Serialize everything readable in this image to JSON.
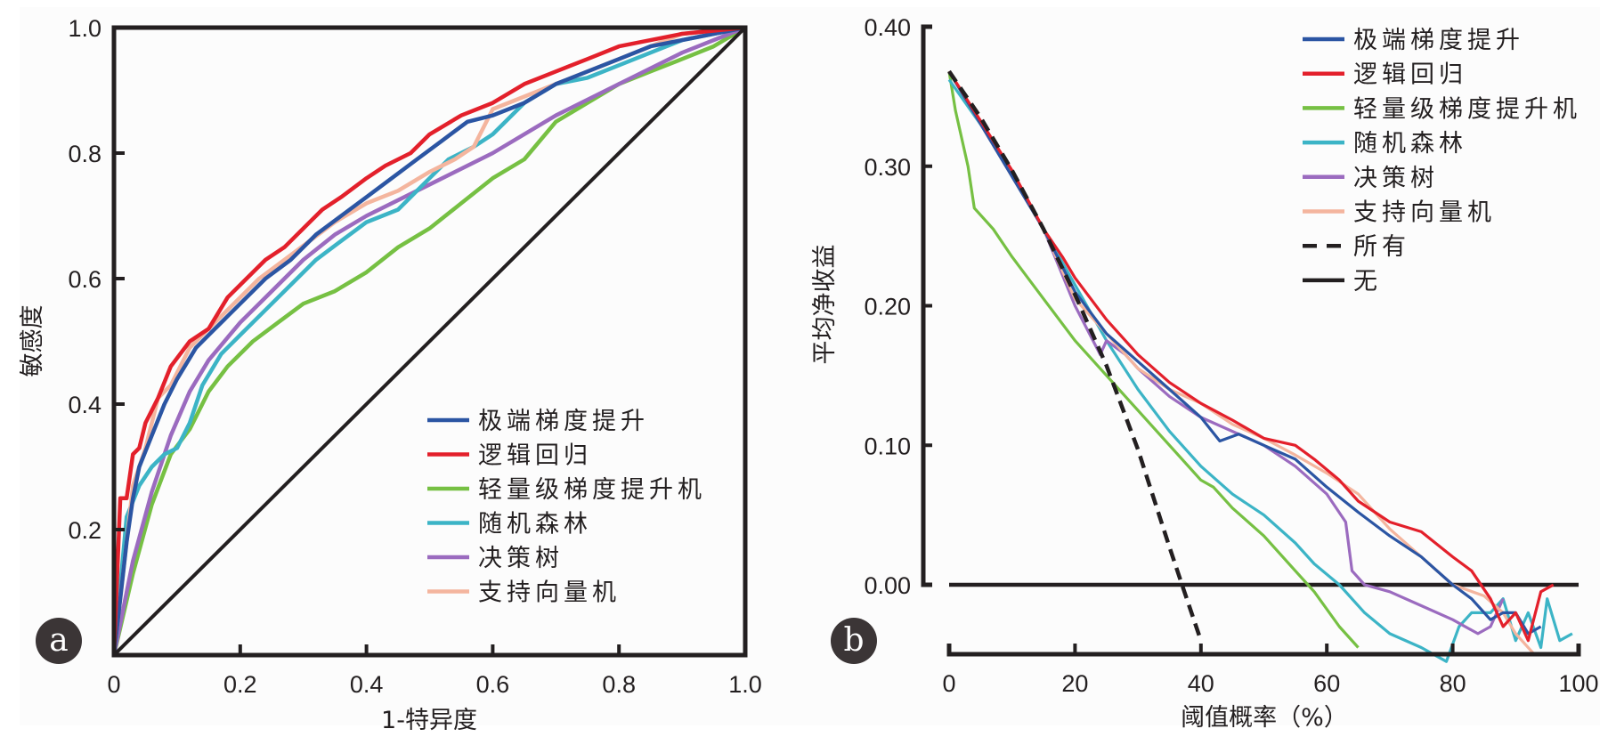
{
  "figure": {
    "panels": [
      "a",
      "b"
    ]
  },
  "chart_data": [
    {
      "panel": "a",
      "type": "line",
      "title": "",
      "xlabel": "1-特异度",
      "ylabel": "敏感度",
      "xlim": [
        0,
        1.0
      ],
      "ylim": [
        0,
        1.0
      ],
      "xticks": [
        0,
        0.2,
        0.4,
        0.6,
        0.8,
        1.0
      ],
      "xtick_labels": [
        "0",
        "0.2",
        "0.4",
        "0.6",
        "0.8",
        "1.0"
      ],
      "yticks": [
        0.2,
        0.4,
        0.6,
        0.8,
        1.0
      ],
      "ytick_labels": [
        "0.2",
        "0.4",
        "0.6",
        "0.8",
        "1.0"
      ],
      "grid": false,
      "legend_position": "bottom-right",
      "reference_line": {
        "name": "diagonal",
        "x": [
          0,
          1
        ],
        "y": [
          0,
          1
        ],
        "color": "#231f20"
      },
      "series": [
        {
          "name": "极端梯度提升",
          "color": "#2b55a3",
          "x": [
            0,
            0.02,
            0.03,
            0.04,
            0.06,
            0.08,
            0.1,
            0.13,
            0.16,
            0.2,
            0.24,
            0.28,
            0.32,
            0.36,
            0.4,
            0.44,
            0.48,
            0.52,
            0.56,
            0.6,
            0.65,
            0.7,
            0.75,
            0.8,
            0.85,
            0.9,
            1.0
          ],
          "y": [
            0,
            0.18,
            0.25,
            0.3,
            0.35,
            0.4,
            0.44,
            0.49,
            0.52,
            0.56,
            0.6,
            0.63,
            0.67,
            0.7,
            0.73,
            0.76,
            0.79,
            0.82,
            0.85,
            0.86,
            0.88,
            0.91,
            0.93,
            0.95,
            0.97,
            0.98,
            1.0
          ]
        },
        {
          "name": "逻辑回归",
          "color": "#e3202b",
          "x": [
            0,
            0.01,
            0.02,
            0.03,
            0.04,
            0.05,
            0.07,
            0.09,
            0.12,
            0.15,
            0.18,
            0.21,
            0.24,
            0.27,
            0.3,
            0.33,
            0.36,
            0.4,
            0.43,
            0.47,
            0.5,
            0.55,
            0.6,
            0.65,
            0.7,
            0.75,
            0.8,
            0.85,
            0.9,
            1.0
          ],
          "y": [
            0,
            0.25,
            0.25,
            0.32,
            0.33,
            0.37,
            0.41,
            0.46,
            0.5,
            0.52,
            0.57,
            0.6,
            0.63,
            0.65,
            0.68,
            0.71,
            0.73,
            0.76,
            0.78,
            0.8,
            0.83,
            0.86,
            0.88,
            0.91,
            0.93,
            0.95,
            0.97,
            0.98,
            0.99,
            1.0
          ]
        },
        {
          "name": "轻量级梯度提升机",
          "color": "#76c043",
          "x": [
            0,
            0.03,
            0.06,
            0.09,
            0.12,
            0.15,
            0.18,
            0.22,
            0.26,
            0.3,
            0.35,
            0.4,
            0.45,
            0.5,
            0.55,
            0.6,
            0.65,
            0.7,
            0.75,
            0.8,
            0.85,
            0.9,
            0.95,
            1.0
          ],
          "y": [
            0,
            0.13,
            0.24,
            0.32,
            0.36,
            0.42,
            0.46,
            0.5,
            0.53,
            0.56,
            0.58,
            0.61,
            0.65,
            0.68,
            0.72,
            0.76,
            0.79,
            0.85,
            0.88,
            0.91,
            0.93,
            0.95,
            0.97,
            1.0
          ]
        },
        {
          "name": "随机森林",
          "color": "#3cb4c6",
          "x": [
            0,
            0.02,
            0.04,
            0.06,
            0.08,
            0.1,
            0.12,
            0.14,
            0.17,
            0.2,
            0.24,
            0.28,
            0.32,
            0.36,
            0.4,
            0.45,
            0.5,
            0.53,
            0.57,
            0.6,
            0.65,
            0.7,
            0.75,
            0.8,
            0.85,
            0.9,
            1.0
          ],
          "y": [
            0,
            0.22,
            0.27,
            0.3,
            0.32,
            0.33,
            0.37,
            0.43,
            0.48,
            0.51,
            0.55,
            0.59,
            0.63,
            0.66,
            0.69,
            0.71,
            0.76,
            0.79,
            0.81,
            0.83,
            0.88,
            0.91,
            0.92,
            0.94,
            0.96,
            0.98,
            1.0
          ]
        },
        {
          "name": "决策树",
          "color": "#9b6bbf",
          "x": [
            0,
            0.03,
            0.06,
            0.09,
            0.12,
            0.15,
            0.2,
            0.25,
            0.3,
            0.35,
            0.4,
            0.5,
            0.6,
            0.7,
            0.8,
            0.9,
            1.0
          ],
          "y": [
            0,
            0.15,
            0.26,
            0.35,
            0.42,
            0.47,
            0.53,
            0.58,
            0.63,
            0.67,
            0.7,
            0.75,
            0.8,
            0.86,
            0.91,
            0.96,
            1.0
          ]
        },
        {
          "name": "支持向量机",
          "color": "#f4b59e",
          "x": [
            0,
            0.02,
            0.03,
            0.05,
            0.07,
            0.09,
            0.12,
            0.15,
            0.19,
            0.23,
            0.27,
            0.31,
            0.35,
            0.4,
            0.45,
            0.5,
            0.54,
            0.57,
            0.6,
            0.65,
            0.7,
            0.75,
            0.8,
            0.85,
            0.9,
            1.0
          ],
          "y": [
            0,
            0.18,
            0.27,
            0.33,
            0.41,
            0.43,
            0.49,
            0.52,
            0.56,
            0.6,
            0.63,
            0.66,
            0.69,
            0.72,
            0.74,
            0.77,
            0.79,
            0.81,
            0.87,
            0.89,
            0.91,
            0.93,
            0.95,
            0.97,
            0.99,
            1.0
          ]
        }
      ]
    },
    {
      "panel": "b",
      "type": "line",
      "title": "",
      "xlabel": "阈值概率（%）",
      "ylabel": "平均净收益",
      "xlim": [
        0,
        100
      ],
      "ylim": [
        -0.05,
        0.4
      ],
      "xticks": [
        0,
        20,
        40,
        60,
        80,
        100
      ],
      "xtick_labels": [
        "0",
        "20",
        "40",
        "60",
        "80",
        "100"
      ],
      "yticks": [
        0.0,
        0.1,
        0.2,
        0.3,
        0.4
      ],
      "ytick_labels": [
        "0.00",
        "0.10",
        "0.20",
        "0.30",
        "0.40"
      ],
      "grid": false,
      "legend_position": "top-right",
      "series": [
        {
          "name": "极端梯度提升",
          "color": "#2b55a3",
          "style": "solid",
          "x": [
            0,
            15,
            20,
            25,
            30,
            35,
            40,
            43,
            46,
            50,
            55,
            60,
            65,
            70,
            75,
            80,
            83,
            86,
            88,
            90,
            92,
            94
          ],
          "y": [
            0.368,
            0.255,
            0.21,
            0.18,
            0.16,
            0.14,
            0.12,
            0.103,
            0.108,
            0.1,
            0.09,
            0.07,
            0.052,
            0.035,
            0.02,
            0.0,
            -0.01,
            -0.025,
            -0.02,
            -0.02,
            -0.035,
            -0.03
          ]
        },
        {
          "name": "逻辑回归",
          "color": "#e3202b",
          "style": "solid",
          "x": [
            0,
            10,
            15,
            18,
            20,
            25,
            30,
            35,
            40,
            45,
            50,
            55,
            58,
            62,
            65,
            70,
            75,
            80,
            83,
            86,
            88,
            90,
            92,
            94,
            96
          ],
          "y": [
            0.368,
            0.297,
            0.255,
            0.235,
            0.22,
            0.19,
            0.165,
            0.145,
            0.13,
            0.118,
            0.105,
            0.1,
            0.09,
            0.075,
            0.06,
            0.045,
            0.038,
            0.02,
            0.01,
            -0.01,
            -0.03,
            -0.02,
            -0.04,
            -0.005,
            0.0
          ]
        },
        {
          "name": "轻量级梯度提升机",
          "color": "#76c043",
          "style": "solid",
          "x": [
            0,
            1,
            3,
            4,
            7,
            10,
            15,
            20,
            25,
            30,
            35,
            40,
            42,
            45,
            50,
            55,
            58,
            62,
            65
          ],
          "y": [
            0.368,
            0.34,
            0.3,
            0.27,
            0.255,
            0.235,
            0.205,
            0.175,
            0.15,
            0.125,
            0.1,
            0.075,
            0.07,
            0.055,
            0.035,
            0.01,
            -0.005,
            -0.03,
            -0.045
          ]
        },
        {
          "name": "随机森林",
          "color": "#3cb4c6",
          "style": "solid",
          "x": [
            0,
            5,
            10,
            15,
            20,
            25,
            30,
            35,
            40,
            45,
            50,
            55,
            58,
            62,
            66,
            70,
            75,
            79,
            81,
            83,
            86,
            88,
            90,
            92,
            94,
            95,
            97,
            99
          ],
          "y": [
            0.362,
            0.33,
            0.295,
            0.255,
            0.215,
            0.175,
            0.14,
            0.11,
            0.085,
            0.065,
            0.05,
            0.03,
            0.015,
            0.0,
            -0.02,
            -0.035,
            -0.045,
            -0.055,
            -0.03,
            -0.02,
            -0.02,
            -0.01,
            -0.04,
            -0.02,
            -0.045,
            -0.01,
            -0.04,
            -0.035
          ]
        },
        {
          "name": "决策树",
          "color": "#9b6bbf",
          "style": "solid",
          "x": [
            0,
            15,
            20,
            24,
            25,
            28,
            30,
            35,
            40,
            45,
            50,
            55,
            60,
            63,
            64,
            66,
            70,
            75,
            80,
            84,
            86,
            88
          ],
          "y": [
            0.368,
            0.255,
            0.2,
            0.165,
            0.175,
            0.165,
            0.155,
            0.135,
            0.12,
            0.11,
            0.1,
            0.085,
            0.065,
            0.045,
            0.01,
            0.0,
            -0.005,
            -0.015,
            -0.025,
            -0.035,
            -0.03,
            -0.01
          ]
        },
        {
          "name": "支持向量机",
          "color": "#f4b59e",
          "style": "solid",
          "x": [
            0,
            15,
            20,
            22,
            25,
            30,
            35,
            40,
            45,
            50,
            55,
            60,
            65,
            70,
            75,
            80,
            85,
            88,
            90,
            93
          ],
          "y": [
            0.368,
            0.255,
            0.205,
            0.195,
            0.18,
            0.155,
            0.14,
            0.13,
            0.115,
            0.105,
            0.093,
            0.08,
            0.065,
            0.04,
            0.02,
            0.0,
            -0.008,
            -0.02,
            -0.035,
            -0.05
          ]
        },
        {
          "name": "所有",
          "color": "#231f20",
          "style": "dashed",
          "x": [
            0,
            5,
            10,
            15,
            20,
            25,
            30,
            35,
            37,
            40
          ],
          "y": [
            0.368,
            0.335,
            0.297,
            0.255,
            0.208,
            0.157,
            0.097,
            0.027,
            0.0,
            -0.04
          ]
        },
        {
          "name": "无",
          "color": "#231f20",
          "style": "solid",
          "x": [
            0,
            100
          ],
          "y": [
            0,
            0
          ]
        }
      ]
    }
  ]
}
